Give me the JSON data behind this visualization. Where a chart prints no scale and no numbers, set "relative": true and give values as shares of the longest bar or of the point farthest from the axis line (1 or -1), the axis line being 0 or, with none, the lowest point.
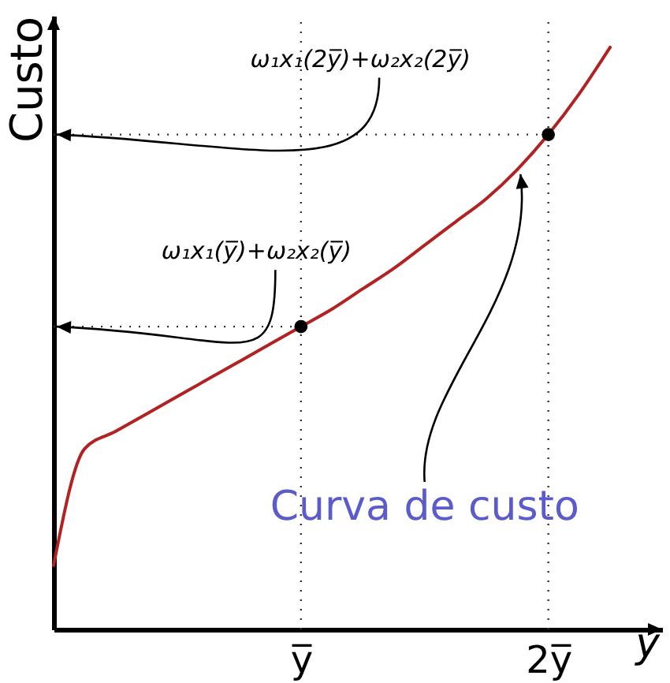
{
  "chart_data": {
    "type": "line",
    "relative": true,
    "xlabel": "y",
    "ylabel": "Custo",
    "categories": [
      null,
      null,
      null,
      null,
      null,
      null,
      null,
      null,
      "y̅",
      null,
      null,
      null,
      null,
      null,
      null,
      null,
      "2y̅",
      null,
      null
    ],
    "series": [
      {
        "color": "#b22222",
        "values": [
          0.11,
          0.31,
          0.34,
          0.37,
          0.4,
          0.43,
          0.46,
          0.49,
          0.52,
          0.55,
          0.585,
          0.62,
          0.66,
          0.7,
          0.74,
          0.79,
          0.85,
          0.92,
          1.0
        ]
      },
      {
        "type": "scatter",
        "marker": "circle",
        "color": "#000000",
        "values": [
          null,
          null,
          null,
          null,
          null,
          null,
          null,
          null,
          0.52,
          null,
          null,
          null,
          null,
          null,
          null,
          null,
          0.85,
          null,
          null
        ]
      }
    ],
    "ref_lines": [
      {
        "axis": "x",
        "value": "y̅",
        "line_style": "dotted"
      },
      {
        "axis": "x",
        "value": "2y̅",
        "line_style": "dotted"
      },
      {
        "axis": "y",
        "value": 0.52,
        "line_style": "dotted",
        "label": "ω₁x₁(y̅)+ω₂x₂(y̅)"
      },
      {
        "axis": "y",
        "value": 0.85,
        "line_style": "dotted",
        "label": "ω₁x₁(2y̅)+ω₂x₂(2y̅)"
      }
    ],
    "annotations": [
      "Curva de custo"
    ]
  }
}
